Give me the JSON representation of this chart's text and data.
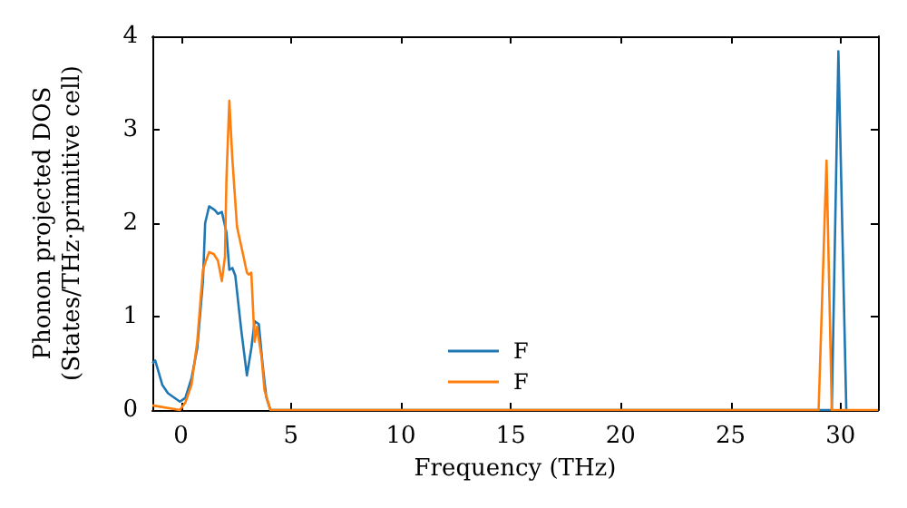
{
  "chart_data": {
    "type": "line",
    "xlabel": "Frequency (THz)",
    "ylabel": "Phonon projected DOS\n(States/THz·primitive cell)",
    "xlim": [
      -1.3,
      31.7
    ],
    "xticks": [
      0,
      5,
      10,
      15,
      20,
      25,
      30
    ],
    "ylim": [
      0,
      4
    ],
    "yticks": [
      0,
      1,
      2,
      3,
      4
    ],
    "grid": false,
    "legend": "bottom",
    "marker": "none",
    "line_style": "solid",
    "series": [
      {
        "name": "F",
        "color": "#1f77b4",
        "x": [
          -1.3,
          -1.17,
          -0.85,
          -0.59,
          -0.05,
          0.2,
          0.48,
          0.74,
          1.0,
          1.1,
          1.28,
          1.54,
          1.68,
          1.86,
          2.07,
          2.2,
          2.34,
          2.47,
          2.74,
          3.0,
          3.2,
          3.35,
          3.54,
          3.72,
          3.88,
          4.07,
          29.6,
          29.9,
          30.26
        ],
        "values": [
          0.5,
          0.53,
          0.27,
          0.18,
          0.09,
          0.13,
          0.34,
          0.66,
          1.38,
          2.0,
          2.18,
          2.14,
          2.1,
          2.12,
          1.9,
          1.5,
          1.52,
          1.44,
          0.86,
          0.37,
          0.66,
          0.95,
          0.92,
          0.47,
          0.14,
          0,
          0,
          3.84,
          0
        ]
      },
      {
        "name": "F",
        "color": "#ff7f0e",
        "x": [
          -1.3,
          -0.05,
          0.2,
          0.48,
          0.74,
          1.0,
          1.14,
          1.28,
          1.49,
          1.68,
          1.86,
          2.0,
          2.07,
          2.2,
          2.34,
          2.55,
          2.82,
          3.0,
          3.08,
          3.2,
          3.35,
          3.46,
          3.54,
          3.67,
          3.8,
          4.07,
          29.0,
          29.36,
          29.6,
          31.7
        ],
        "values": [
          0.05,
          0,
          0.08,
          0.27,
          0.73,
          1.5,
          1.6,
          1.69,
          1.67,
          1.6,
          1.38,
          1.64,
          2.48,
          3.31,
          2.68,
          1.96,
          1.67,
          1.47,
          1.45,
          1.47,
          0.73,
          0.89,
          0.76,
          0.56,
          0.21,
          0,
          0,
          2.67,
          0,
          0
        ]
      }
    ]
  }
}
